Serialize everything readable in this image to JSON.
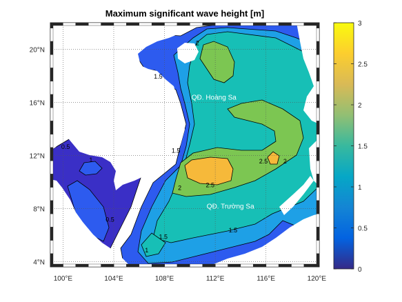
{
  "chart_data": {
    "type": "heatmap",
    "title": "Maximum significant wave height [m]",
    "x_ticks": [
      "100°E",
      "104°E",
      "108°E",
      "112°E",
      "116°E",
      "120°E"
    ],
    "y_ticks": [
      "4°N",
      "8°N",
      "12°N",
      "16°N",
      "20°N"
    ],
    "xlim": [
      99,
      120.2
    ],
    "ylim": [
      3.6,
      22
    ],
    "grid": true,
    "colorbar": {
      "ticks": [
        "0",
        "0.5",
        "1",
        "1.5",
        "2",
        "2.5",
        "3"
      ],
      "range": [
        0,
        3
      ],
      "colormap": "parula"
    },
    "contour_levels": [
      0.5,
      1,
      1.5,
      2,
      2.5
    ],
    "contour_labels": [
      {
        "text": "2.5",
        "lon": 111.6,
        "lat": 9.6
      },
      {
        "text": "2",
        "lon": 109.2,
        "lat": 9.4
      },
      {
        "text": "2",
        "lon": 110.6,
        "lat": 20.3
      },
      {
        "text": "2",
        "lon": 117.5,
        "lat": 11.4
      },
      {
        "text": "2.5",
        "lon": 115.8,
        "lat": 11.4
      },
      {
        "text": "1.5",
        "lon": 108.9,
        "lat": 12.2
      },
      {
        "text": "1.5",
        "lon": 113.4,
        "lat": 6.2
      },
      {
        "text": "1.5",
        "lon": 107.9,
        "lat": 5.7
      },
      {
        "text": "1.5",
        "lon": 107.5,
        "lat": 17.8
      },
      {
        "text": "1",
        "lon": 106.6,
        "lat": 4.7
      },
      {
        "text": "1",
        "lon": 102.2,
        "lat": 11.5
      },
      {
        "text": "0.5",
        "lon": 103.7,
        "lat": 7.0
      },
      {
        "text": "0.5",
        "lon": 100.2,
        "lat": 12.5
      }
    ],
    "annotations": [
      {
        "text": "QĐ. Hoàng Sa",
        "lon": 111.9,
        "lat": 16.2
      },
      {
        "text": "QĐ. Trường Sa",
        "lon": 113.2,
        "lat": 8.0
      }
    ]
  },
  "colors": {
    "land": "#ffffff",
    "c_0_05": "#3a2fc6",
    "c_05_1": "#2d5bef",
    "c_1_15": "#1ea0e6",
    "c_15_2": "#17bfb6",
    "c_2_25": "#7cc652",
    "c_25_3": "#f6b93a",
    "contour": "#000000"
  }
}
